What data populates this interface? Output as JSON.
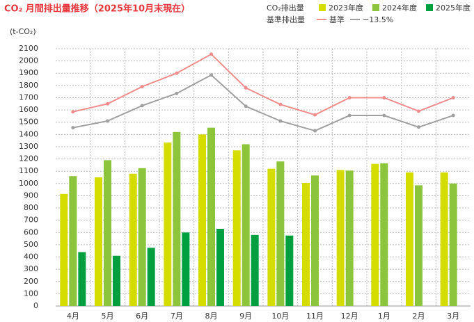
{
  "chart_data": {
    "type": "bar",
    "title": "CO₂ 月間排出量推移（2025年10月末現在）",
    "y_label": "(t-CO₂)",
    "legend_titles": [
      "CO₂排出量",
      "基準排出量"
    ],
    "categories": [
      "4月",
      "5月",
      "6月",
      "7月",
      "8月",
      "9月",
      "10月",
      "11月",
      "12月",
      "1月",
      "2月",
      "3月"
    ],
    "series": [
      {
        "name": "2023年度",
        "type": "bar",
        "color": "#d4dc00",
        "values": [
          915,
          1050,
          1080,
          1335,
          1400,
          1270,
          1120,
          1005,
          1110,
          1160,
          1090,
          1090
        ]
      },
      {
        "name": "2024年度",
        "type": "bar",
        "color": "#8cc43c",
        "values": [
          1060,
          1190,
          1125,
          1420,
          1455,
          1320,
          1180,
          1065,
          1105,
          1165,
          985,
          1000
        ]
      },
      {
        "name": "2025年度",
        "type": "bar",
        "color": "#00a040",
        "values": [
          440,
          410,
          475,
          600,
          630,
          580,
          575,
          null,
          null,
          null,
          null,
          null
        ]
      },
      {
        "name": "基準",
        "type": "line",
        "color": "#f08c8c",
        "values": [
          1585,
          1650,
          1790,
          1900,
          2055,
          1780,
          1645,
          1560,
          1700,
          1700,
          1590,
          1700
        ]
      },
      {
        "name": "−13.5%",
        "type": "line",
        "color": "#a0a0a0",
        "values": [
          1455,
          1510,
          1635,
          1735,
          1885,
          1630,
          1510,
          1430,
          1555,
          1555,
          1460,
          1555
        ]
      }
    ],
    "ylim": [
      0,
      2100
    ],
    "yticks": [
      0,
      100,
      200,
      300,
      400,
      500,
      600,
      700,
      800,
      900,
      1000,
      1100,
      1200,
      1300,
      1400,
      1500,
      1600,
      1700,
      1800,
      1900,
      2000,
      2100
    ],
    "grid": true
  }
}
